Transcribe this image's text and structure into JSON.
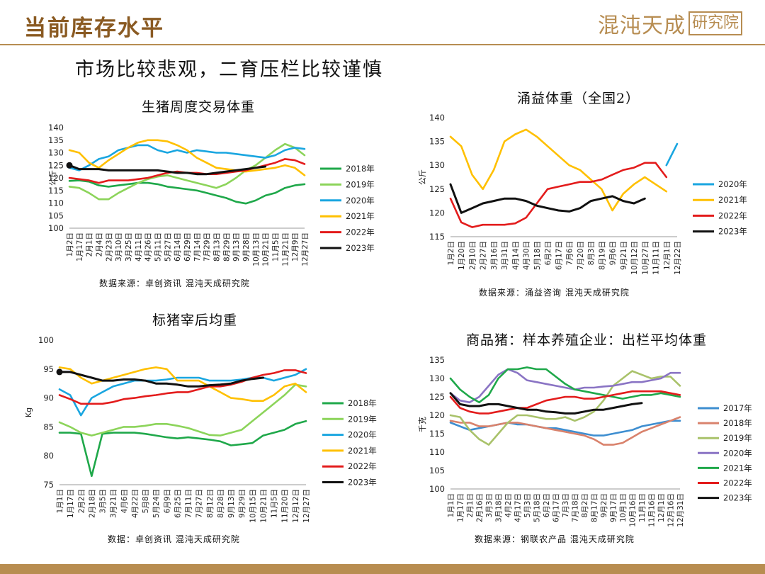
{
  "page": {
    "title": "当前库存水平",
    "logo_text": "混沌天成",
    "logo_box": "研究院",
    "subtitle": "市场比较悲观，二育压栏比较谨慎"
  },
  "colors": {
    "2017": "#3e8ed0",
    "2018": "#1fa84a",
    "2019": "#8cd45a",
    "2020": "#1aa6e0",
    "2021": "#ffc000",
    "2022": "#e31c1c",
    "2023": "#111111",
    "2019_p4": "#a9c26a",
    "2018_p4": "#d9826c",
    "2020_p4": "#8a74c4",
    "accent": "#b78d52"
  },
  "chart_data": [
    {
      "type": "line",
      "title": "生猪周度交易体重",
      "ylabel": "公斤",
      "ylim": [
        100,
        140
      ],
      "yticks": [
        100,
        105,
        110,
        115,
        120,
        125,
        130,
        135,
        140
      ],
      "categories": [
        "1月2日",
        "1月17日",
        "2月1日",
        "2月4日",
        "2月23日",
        "3月10日",
        "3月25日",
        "4月11日",
        "4月26日",
        "5月11日",
        "5月27日",
        "6月14日",
        "6月29日",
        "7月14日",
        "7月29日",
        "8月13日",
        "8月29日",
        "9月13日",
        "9月28日",
        "10月13日",
        "10月21日",
        "11月5日",
        "11月21日",
        "12月9日",
        "12月27日"
      ],
      "source": "数据来源：卓创资讯  混沌天成研究院",
      "series": [
        {
          "name": "2018年",
          "color": "#1fa84a",
          "values": [
            118.8,
            119,
            118.5,
            117,
            116.5,
            117,
            117.5,
            118,
            118,
            117.5,
            116.5,
            116,
            115.5,
            115,
            114,
            113,
            112,
            110.5,
            109.8,
            111,
            113,
            114,
            116,
            117,
            117.5
          ]
        },
        {
          "name": "2019年",
          "color": "#8cd45a",
          "values": [
            116.5,
            116,
            114,
            111.5,
            111.5,
            114,
            116,
            118,
            119.5,
            120.5,
            121,
            120,
            119,
            118,
            117,
            116,
            117.5,
            120,
            123,
            125,
            128,
            131,
            133.5,
            132,
            129
          ]
        },
        {
          "name": "2020年",
          "color": "#1aa6e0",
          "values": [
            124,
            123,
            125,
            127.5,
            128.5,
            131,
            132,
            133,
            133,
            131,
            130,
            131,
            130,
            131,
            130.5,
            130,
            130,
            129.5,
            129,
            128.5,
            128,
            129,
            131,
            132,
            131.5
          ]
        },
        {
          "name": "2021年",
          "color": "#ffc000",
          "values": [
            131,
            130,
            126,
            124,
            127,
            129.5,
            132,
            134,
            135,
            135,
            134.5,
            133,
            131,
            128,
            126,
            124,
            123.5,
            123,
            122.5,
            123,
            123.5,
            124,
            125,
            124,
            121
          ]
        },
        {
          "name": "2022年",
          "color": "#e31c1c",
          "values": [
            120,
            119.5,
            119,
            118,
            119,
            119,
            119,
            119.5,
            120,
            121,
            122,
            122.5,
            122,
            122,
            121.5,
            121.5,
            122,
            122.5,
            123,
            124,
            125,
            126,
            127.5,
            127,
            125.5
          ]
        },
        {
          "name": "2023年",
          "color": "#111111",
          "values": [
            125,
            123.5,
            123.5,
            123.5,
            123,
            123,
            123,
            123,
            123,
            123,
            122.5,
            122,
            122,
            121.5,
            121.5,
            122,
            122.5,
            123,
            123.5,
            124,
            124.5,
            null,
            null,
            null,
            null
          ]
        }
      ]
    },
    {
      "type": "line",
      "title": "涌益体重（全国2）",
      "ylabel": "公斤",
      "ylim": [
        115,
        140
      ],
      "yticks": [
        115,
        120,
        125,
        130,
        135,
        140
      ],
      "categories": [
        "1月2日",
        "1月20日",
        "2月10日",
        "2月27日",
        "3月16日",
        "3月31日",
        "4月14日",
        "4月30日",
        "5月18日",
        "6月2日",
        "6月17日",
        "7月6日",
        "7月20日",
        "8月3日",
        "8月19日",
        "9月6日",
        "9月21日",
        "10月12日",
        "10月27日",
        "11月11日",
        "12月1日",
        "12月22日"
      ],
      "source": "数据来源：涌益咨询  混沌天成研究院",
      "series": [
        {
          "name": "2020年",
          "color": "#1aa6e0",
          "values": [
            null,
            null,
            null,
            null,
            null,
            null,
            null,
            null,
            null,
            null,
            null,
            null,
            null,
            null,
            null,
            null,
            null,
            null,
            null,
            null,
            130,
            134.5
          ]
        },
        {
          "name": "2021年",
          "color": "#ffc000",
          "values": [
            136,
            134,
            128,
            125,
            129,
            135,
            136.5,
            137.5,
            136,
            134,
            132,
            130,
            129,
            127,
            125,
            120.5,
            124,
            126,
            127.5,
            126,
            124.5,
            null
          ]
        },
        {
          "name": "2022年",
          "color": "#e31c1c",
          "values": [
            123,
            118,
            117,
            117.5,
            117.5,
            117.5,
            117.8,
            119,
            122,
            125,
            125.5,
            126,
            126.5,
            126.5,
            127,
            128,
            129,
            129.5,
            130.5,
            130.5,
            127.5,
            null
          ]
        },
        {
          "name": "2023年",
          "color": "#111111",
          "values": [
            126,
            120,
            121,
            122,
            122.5,
            123,
            123,
            122.5,
            121.5,
            121,
            120.5,
            120.3,
            121,
            122.5,
            123,
            123.5,
            122.5,
            122,
            123,
            null,
            null,
            null
          ]
        }
      ]
    },
    {
      "type": "line",
      "title": "标猪宰后均重",
      "ylabel": "Kg",
      "ylim": [
        75,
        100
      ],
      "yticks": [
        75,
        80,
        85,
        90,
        95,
        100
      ],
      "categories": [
        "1月1日",
        "1月17日",
        "2月2日",
        "2月18日",
        "3月5日",
        "3月21日",
        "4月6日",
        "4月22日",
        "5月8日",
        "5月24日",
        "6月9日",
        "6月25日",
        "7月11日",
        "7月27日",
        "8月12日",
        "8月28日",
        "9月13日",
        "9月29日",
        "10月15日",
        "10月21日",
        "11月5日",
        "11月20日",
        "12月12日",
        "12月27日"
      ],
      "source": "数据：卓创资讯  混沌天成研究院",
      "series": [
        {
          "name": "2018年",
          "color": "#1fa84a",
          "values": [
            84,
            84,
            83.8,
            76.5,
            83.8,
            84,
            84,
            84,
            83.8,
            83.5,
            83.2,
            83,
            83.2,
            83,
            82.8,
            82.5,
            81.8,
            82,
            82.2,
            83.5,
            84,
            84.5,
            85.5,
            86
          ]
        },
        {
          "name": "2019年",
          "color": "#8cd45a",
          "values": [
            85.8,
            85,
            84,
            83.5,
            84,
            84.5,
            85,
            85,
            85.2,
            85.5,
            85.5,
            85.2,
            84.8,
            84.2,
            83.6,
            83.5,
            84,
            84.5,
            86,
            87.5,
            89,
            90.5,
            92.3,
            92
          ]
        },
        {
          "name": "2020年",
          "color": "#1aa6e0",
          "values": [
            91.5,
            90.5,
            87,
            90,
            91,
            92,
            92.5,
            93,
            93,
            93,
            93.2,
            93.5,
            93.5,
            93.5,
            93,
            93,
            93,
            93.2,
            93.5,
            93.5,
            93,
            93.5,
            94,
            95
          ]
        },
        {
          "name": "2021年",
          "color": "#ffc000",
          "values": [
            95.3,
            95,
            93.5,
            92.5,
            93,
            93.5,
            94,
            94.5,
            95,
            95.3,
            95,
            93,
            93,
            93,
            92,
            91,
            90,
            89.8,
            89.5,
            89.5,
            90.5,
            92,
            92.5,
            91
          ]
        },
        {
          "name": "2022年",
          "color": "#e31c1c",
          "values": [
            90.5,
            89.8,
            89,
            89,
            89,
            89.3,
            89.8,
            90,
            90.3,
            90.5,
            90.8,
            91,
            91,
            91.5,
            92,
            92,
            92.3,
            92.8,
            93.5,
            94,
            94.3,
            94.8,
            94.8,
            94.3
          ]
        },
        {
          "name": "2023年",
          "color": "#111111",
          "values": [
            94.5,
            94.5,
            94,
            93.5,
            93,
            93,
            93.2,
            93.2,
            93,
            92.5,
            92.5,
            92.3,
            92,
            92,
            92.2,
            92.3,
            92.5,
            93,
            93.3,
            93.5,
            null,
            null,
            null,
            null
          ]
        }
      ]
    },
    {
      "type": "line",
      "title": "商品猪：样本养殖企业：出栏平均体重",
      "ylabel": "千克",
      "ylim": [
        100,
        135
      ],
      "yticks": [
        100,
        105,
        110,
        115,
        120,
        125,
        130,
        135
      ],
      "categories": [
        "1月1日",
        "1月17日",
        "2月1日",
        "2月16日",
        "3月3日",
        "3月18日",
        "4月2日",
        "4月17日",
        "5月3日",
        "5月18日",
        "6月2日",
        "6月17日",
        "7月3日",
        "7月18日",
        "8月2日",
        "8月17日",
        "9月2日",
        "9月17日",
        "10月1日",
        "10月16日",
        "11月1日",
        "11月16日",
        "12月1日",
        "12月16日",
        "12月31日"
      ],
      "source": "数据来源：钢联农产品  混沌天成研究院",
      "series": [
        {
          "name": "2017年",
          "color": "#3e8ed0",
          "values": [
            118,
            117,
            116,
            116.5,
            117,
            117.5,
            118,
            117.5,
            117.5,
            117,
            116.5,
            116.5,
            116,
            115.5,
            115,
            114.5,
            114.5,
            115,
            115.5,
            116,
            117,
            117.5,
            118,
            118.5,
            118.5
          ]
        },
        {
          "name": "2018年",
          "color": "#d9826c",
          "values": [
            118.5,
            118,
            118,
            117,
            117,
            117.5,
            118,
            118,
            117.5,
            117,
            116.5,
            116,
            115.5,
            115,
            114.5,
            113.5,
            112,
            112,
            112.5,
            114,
            115.5,
            116.5,
            117.5,
            118.5,
            119.5
          ]
        },
        {
          "name": "2019年",
          "color": "#a9c26a",
          "values": [
            120,
            119.5,
            116,
            113.5,
            112,
            115,
            118,
            120,
            120,
            119.5,
            119,
            119,
            119.5,
            118.5,
            119.5,
            121,
            124,
            128,
            130,
            132,
            131,
            130,
            130.5,
            130.5,
            128
          ]
        },
        {
          "name": "2020年",
          "color": "#8a74c4",
          "values": [
            126,
            124,
            123.5,
            125,
            128,
            131,
            132.5,
            131.5,
            129.5,
            129,
            128.5,
            128,
            127.5,
            127,
            127.5,
            127.5,
            127.8,
            128,
            128.5,
            129,
            129,
            129.5,
            130,
            131.5,
            131.5
          ]
        },
        {
          "name": "2021年",
          "color": "#1fa84a",
          "values": [
            130,
            127,
            125,
            123.5,
            125.5,
            130,
            132.5,
            132.5,
            133,
            132.5,
            132.5,
            130.5,
            128.5,
            127,
            126.5,
            126,
            125.5,
            125,
            124.5,
            125,
            125.5,
            125.5,
            126,
            125.5,
            125
          ]
        },
        {
          "name": "2022年",
          "color": "#e31c1c",
          "values": [
            125,
            122,
            121,
            120.5,
            120.5,
            121,
            121.5,
            122,
            122,
            123,
            124,
            124.5,
            125,
            125,
            124.5,
            124.5,
            125,
            125.5,
            126,
            126.5,
            126.5,
            126.5,
            126.5,
            126,
            125.5
          ]
        },
        {
          "name": "2023年",
          "color": "#111111",
          "values": [
            126,
            123,
            122.5,
            122.5,
            123,
            123,
            122.5,
            122,
            121.5,
            121.5,
            121,
            120.8,
            120.5,
            120.5,
            121,
            121.5,
            121.5,
            122,
            122.5,
            123,
            123.3,
            null,
            null,
            null,
            null
          ]
        }
      ]
    }
  ]
}
